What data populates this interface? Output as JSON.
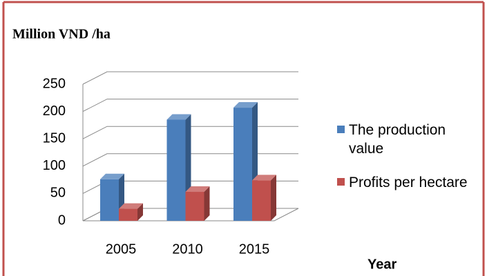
{
  "chart_data": {
    "type": "bar3d",
    "title": "Million VND /ha",
    "x_label": "Year",
    "categories": [
      "2005",
      "2010",
      "2015"
    ],
    "series": [
      {
        "name": "The production value",
        "color": "#4a7ebb",
        "values": [
          76,
          185,
          207
        ]
      },
      {
        "name": "Profits per hectare",
        "color": "#c0504d",
        "values": [
          22,
          53,
          74
        ]
      }
    ],
    "ylim": [
      0,
      250
    ],
    "yticks": [
      0,
      50,
      100,
      150,
      200,
      250
    ],
    "grid": true,
    "legend": "right"
  }
}
